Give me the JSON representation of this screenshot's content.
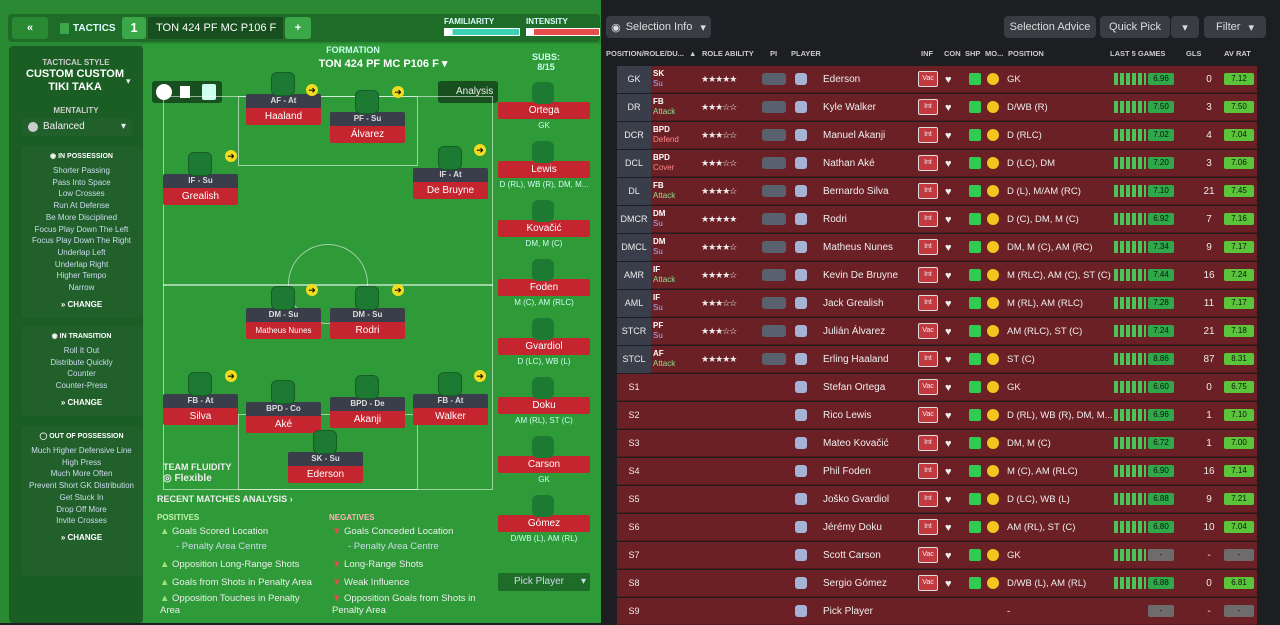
{
  "header": {
    "tactics_label": "TACTICS",
    "tactic_number": "1",
    "tactic_name": "TON 424  PF MC P106 F",
    "familiarity_label": "FAMILIARITY",
    "intensity_label": "INTENSITY"
  },
  "sidebar": {
    "style_label": "TACTICAL STYLE",
    "style_name": "CUSTOM CUSTOM TIKI TAKA",
    "mentality_label": "MENTALITY",
    "mentality_value": "Balanced",
    "in_possession": {
      "title": "IN POSSESSION",
      "items": [
        "Shorter Passing",
        "Pass Into Space",
        "Low Crosses",
        "Run At Defense",
        "Be More Disciplined",
        "Focus Play Down The Left",
        "Focus Play Down The Right",
        "Underlap Left",
        "Underlap Right",
        "Higher Tempo",
        "Narrow"
      ],
      "change": "CHANGE"
    },
    "in_transition": {
      "title": "IN TRANSITION",
      "items": [
        "Roll It Out",
        "Distribute Quickly",
        "Counter",
        "Counter-Press"
      ],
      "change": "CHANGE"
    },
    "out_of_possession": {
      "title": "OUT OF POSSESSION",
      "items": [
        "Much Higher Defensive Line",
        "High Press",
        "Much More Often",
        "Prevent Short GK Distribution",
        "Get Stuck In",
        "Drop Off More",
        "Invite Crosses"
      ],
      "change": "CHANGE"
    }
  },
  "pitch": {
    "formation_label": "FORMATION",
    "formation_name": "TON 424  PF MC P106 F",
    "analysis_label": "Analysis",
    "team_fluidity_label": "TEAM FLUIDITY",
    "team_fluidity_value": "Flexible",
    "players": [
      {
        "role": "AF - At",
        "name": "Haaland"
      },
      {
        "role": "PF - Su",
        "name": "Álvarez"
      },
      {
        "role": "IF - Su",
        "name": "Grealish"
      },
      {
        "role": "IF - At",
        "name": "De Bruyne"
      },
      {
        "role": "DM - Su",
        "name": "Matheus Nunes"
      },
      {
        "role": "DM - Su",
        "name": "Rodri"
      },
      {
        "role": "FB - At",
        "name": "Silva"
      },
      {
        "role": "BPD - Co",
        "name": "Aké"
      },
      {
        "role": "BPD - De",
        "name": "Akanji"
      },
      {
        "role": "FB - At",
        "name": "Walker"
      },
      {
        "role": "SK - Su",
        "name": "Ederson"
      }
    ]
  },
  "subs": {
    "label": "SUBS:",
    "count": "8/15",
    "players": [
      {
        "name": "Ortega",
        "pos": "GK"
      },
      {
        "name": "Lewis",
        "pos": "D (RL), WB (R), DM, M..."
      },
      {
        "name": "Kovačić",
        "pos": "DM, M (C)"
      },
      {
        "name": "Foden",
        "pos": "M (C), AM (RLC)"
      },
      {
        "name": "Gvardiol",
        "pos": "D (LC), WB (L)"
      },
      {
        "name": "Doku",
        "pos": "AM (RL), ST (C)"
      },
      {
        "name": "Carson",
        "pos": "GK"
      },
      {
        "name": "Gómez",
        "pos": "D/WB (L), AM (RL)"
      }
    ],
    "pick_player": "Pick Player"
  },
  "analysis": {
    "title": "RECENT MATCHES ANALYSIS",
    "positives_label": "POSITIVES",
    "negatives_label": "NEGATIVES",
    "positives": [
      "Goals Scored Location",
      "- Penalty Area Centre",
      "Opposition Long-Range Shots",
      "Goals from Shots in Penalty Area",
      "Opposition Touches in Penalty Area"
    ],
    "negatives": [
      "Goals Conceded Location",
      "- Penalty Area Centre",
      "Long-Range Shots",
      "Weak Influence",
      "Opposition Goals from Shots in Penalty Area"
    ]
  },
  "right": {
    "selection_info": "Selection Info",
    "selection_advice": "Selection Advice",
    "quick_pick": "Quick Pick",
    "filter": "Filter",
    "columns": {
      "pos_role": "POSITION/ROLE/DU...",
      "role_ability": "ROLE ABILITY",
      "pi": "PI",
      "player": "PLAYER",
      "inf": "INF",
      "con": "CON",
      "shp": "SHP",
      "mo": "MO...",
      "position": "POSITION",
      "last5": "LAST 5 GAMES",
      "gls": "GLS",
      "avrat": "AV RAT"
    },
    "rows": [
      {
        "slot": "GK",
        "role": "SK",
        "duty": "Su",
        "stars": "★★★★★",
        "player": "Ederson",
        "inf": "Vac",
        "pos": "GK",
        "rat": "6.96",
        "gls": "0",
        "av": "7.12"
      },
      {
        "slot": "DR",
        "role": "FB",
        "duty": "Attack",
        "stars": "★★★☆☆",
        "player": "Kyle Walker",
        "inf": "Int",
        "pos": "D/WB (R)",
        "rat": "7.50",
        "gls": "3",
        "av": "7.50"
      },
      {
        "slot": "DCR",
        "role": "BPD",
        "duty": "Defend",
        "stars": "★★★☆☆",
        "player": "Manuel Akanji",
        "inf": "Int",
        "pos": "D (RLC)",
        "rat": "7.02",
        "gls": "4",
        "av": "7.04"
      },
      {
        "slot": "DCL",
        "role": "BPD",
        "duty": "Cover",
        "stars": "★★★☆☆",
        "player": "Nathan Aké",
        "inf": "Int",
        "pos": "D (LC), DM",
        "rat": "7.20",
        "gls": "3",
        "av": "7.06"
      },
      {
        "slot": "DL",
        "role": "FB",
        "duty": "Attack",
        "stars": "★★★★☆",
        "player": "Bernardo Silva",
        "inf": "Int",
        "pos": "D (L), M/AM (RC)",
        "rat": "7.10",
        "gls": "21",
        "av": "7.45"
      },
      {
        "slot": "DMCR",
        "role": "DM",
        "duty": "Su",
        "stars": "★★★★★",
        "player": "Rodri",
        "inf": "Int",
        "pos": "D (C), DM, M (C)",
        "rat": "6.92",
        "gls": "7",
        "av": "7.16"
      },
      {
        "slot": "DMCL",
        "role": "DM",
        "duty": "Su",
        "stars": "★★★★☆",
        "player": "Matheus Nunes",
        "inf": "Int",
        "pos": "DM, M (C), AM (RC)",
        "rat": "7.34",
        "gls": "9",
        "av": "7.17"
      },
      {
        "slot": "AMR",
        "role": "IF",
        "duty": "Attack",
        "stars": "★★★★☆",
        "player": "Kevin De Bruyne",
        "inf": "Int",
        "pos": "M (RLC), AM (C), ST (C)",
        "rat": "7.44",
        "gls": "16",
        "av": "7.24"
      },
      {
        "slot": "AML",
        "role": "IF",
        "duty": "Su",
        "stars": "★★★☆☆",
        "player": "Jack Grealish",
        "inf": "Int",
        "pos": "M (RL), AM (RLC)",
        "rat": "7.28",
        "gls": "11",
        "av": "7.17"
      },
      {
        "slot": "STCR",
        "role": "PF",
        "duty": "Su",
        "stars": "★★★☆☆",
        "player": "Julián Álvarez",
        "inf": "Vac",
        "pos": "AM (RLC), ST (C)",
        "rat": "7.24",
        "gls": "21",
        "av": "7.18"
      },
      {
        "slot": "STCL",
        "role": "AF",
        "duty": "Attack",
        "stars": "★★★★★",
        "player": "Erling Haaland",
        "inf": "Int",
        "pos": "ST (C)",
        "rat": "8.86",
        "gls": "87",
        "av": "8.31"
      },
      {
        "slot": "S1",
        "role": "",
        "duty": "",
        "stars": "",
        "player": "Stefan Ortega",
        "inf": "Vac",
        "pos": "GK",
        "rat": "6.60",
        "gls": "0",
        "av": "6.75"
      },
      {
        "slot": "S2",
        "role": "",
        "duty": "",
        "stars": "",
        "player": "Rico Lewis",
        "inf": "Vac",
        "pos": "D (RL), WB (R), DM, M...",
        "rat": "6.96",
        "gls": "1",
        "av": "7.10"
      },
      {
        "slot": "S3",
        "role": "",
        "duty": "",
        "stars": "",
        "player": "Mateo Kovačić",
        "inf": "Int",
        "pos": "DM, M (C)",
        "rat": "6.72",
        "gls": "1",
        "av": "7.00"
      },
      {
        "slot": "S4",
        "role": "",
        "duty": "",
        "stars": "",
        "player": "Phil Foden",
        "inf": "Int",
        "pos": "M (C), AM (RLC)",
        "rat": "6.90",
        "gls": "16",
        "av": "7.14"
      },
      {
        "slot": "S5",
        "role": "",
        "duty": "",
        "stars": "",
        "player": "Joško Gvardiol",
        "inf": "Int",
        "pos": "D (LC), WB (L)",
        "rat": "6.88",
        "gls": "9",
        "av": "7.21"
      },
      {
        "slot": "S6",
        "role": "",
        "duty": "",
        "stars": "",
        "player": "Jérémy Doku",
        "inf": "Int",
        "pos": "AM (RL), ST (C)",
        "rat": "6.80",
        "gls": "10",
        "av": "7.04"
      },
      {
        "slot": "S7",
        "role": "",
        "duty": "",
        "stars": "",
        "player": "Scott Carson",
        "inf": "Vac",
        "pos": "GK",
        "rat": "-",
        "gls": "-",
        "av": "-"
      },
      {
        "slot": "S8",
        "role": "",
        "duty": "",
        "stars": "",
        "player": "Sergio Gómez",
        "inf": "Vac",
        "pos": "D/WB (L), AM (RL)",
        "rat": "6.88",
        "gls": "0",
        "av": "6.81"
      },
      {
        "slot": "S9",
        "role": "",
        "duty": "",
        "stars": "",
        "player": "Pick Player",
        "inf": "",
        "pos": "-",
        "rat": "-",
        "gls": "-",
        "av": "-"
      }
    ]
  }
}
